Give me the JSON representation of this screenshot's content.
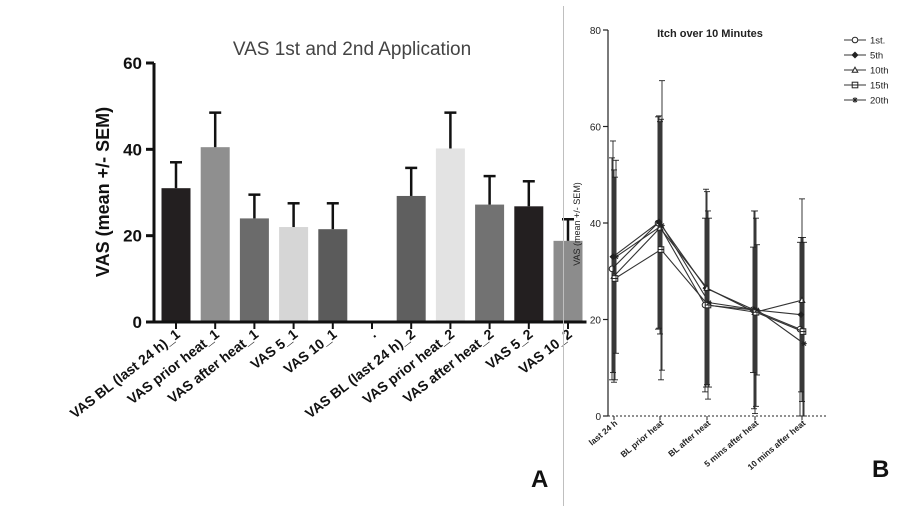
{
  "panel_labels": {
    "a": "A",
    "b": "B"
  },
  "chart_data": [
    {
      "type": "bar",
      "title": "VAS 1st and 2nd Application",
      "xlabel": "",
      "ylabel": "VAS (mean +/- SEM)",
      "ylim": [
        0,
        60
      ],
      "yticks": [
        "0",
        "20",
        "40",
        "60"
      ],
      "grid": false,
      "categories": [
        "VAS BL (last 24 h)_1",
        "VAS prior heat_1",
        "VAS after heat_1",
        "VAS 5_1",
        "VAS 10_1",
        ".",
        "VAS BL (last 24 h)_2",
        "VAS prior heat_2",
        "VAS after heat_2",
        "VAS 5_2",
        "VAS 10_2"
      ],
      "values": [
        31,
        40.5,
        24,
        22,
        21.5,
        0,
        29.2,
        40.2,
        27.2,
        26.8,
        18.8
      ],
      "errors": [
        6,
        8,
        5.5,
        5.5,
        6,
        0,
        6.5,
        8.3,
        6.6,
        5.8,
        5
      ],
      "colors": [
        "#231f20",
        "#8f8f8f",
        "#6b6b6b",
        "#d6d6d6",
        "#5b5b5b",
        "#ffffff",
        "#5f5f5f",
        "#e3e3e3",
        "#727272",
        "#231f20",
        "#8c8c8c"
      ],
      "panel_label": "A"
    },
    {
      "type": "line",
      "title": "Itch over 10 Minutes",
      "xlabel": "",
      "ylabel": "VAS (mean +/- SEM)",
      "ylim": [
        0,
        80
      ],
      "yticks": [
        "0",
        "20",
        "40",
        "60",
        "80"
      ],
      "grid": false,
      "legend_position": "top-right",
      "categories": [
        "last 24 h",
        "BL prior heat",
        "BL after heat",
        "5 mins after heat",
        "10 mins after heat"
      ],
      "series": [
        {
          "name": "1st.",
          "marker": "circle",
          "values": [
            30.5,
            40,
            23,
            22,
            18
          ],
          "errors": [
            23,
            22,
            18,
            13,
            18
          ]
        },
        {
          "name": "5th",
          "marker": "diamond",
          "values": [
            33,
            40.2,
            26.5,
            22,
            21
          ],
          "errors": [
            24,
            22,
            20.5,
            20.5,
            16
          ]
        },
        {
          "name": "10th",
          "marker": "triangle",
          "values": [
            29,
            39,
            26.5,
            21.5,
            24
          ],
          "errors": [
            22,
            22,
            20,
            21,
            21
          ]
        },
        {
          "name": "15th",
          "marker": "square",
          "values": [
            28.5,
            34.5,
            23,
            21.5,
            17.5
          ],
          "errors": [
            21,
            27,
            19.5,
            19.5,
            19.5
          ]
        },
        {
          "name": "20th",
          "marker": "star",
          "values": [
            33,
            39.5,
            23.5,
            22,
            15
          ],
          "errors": [
            20,
            30,
            17.5,
            13.5,
            21
          ]
        }
      ],
      "panel_label": "B"
    }
  ]
}
